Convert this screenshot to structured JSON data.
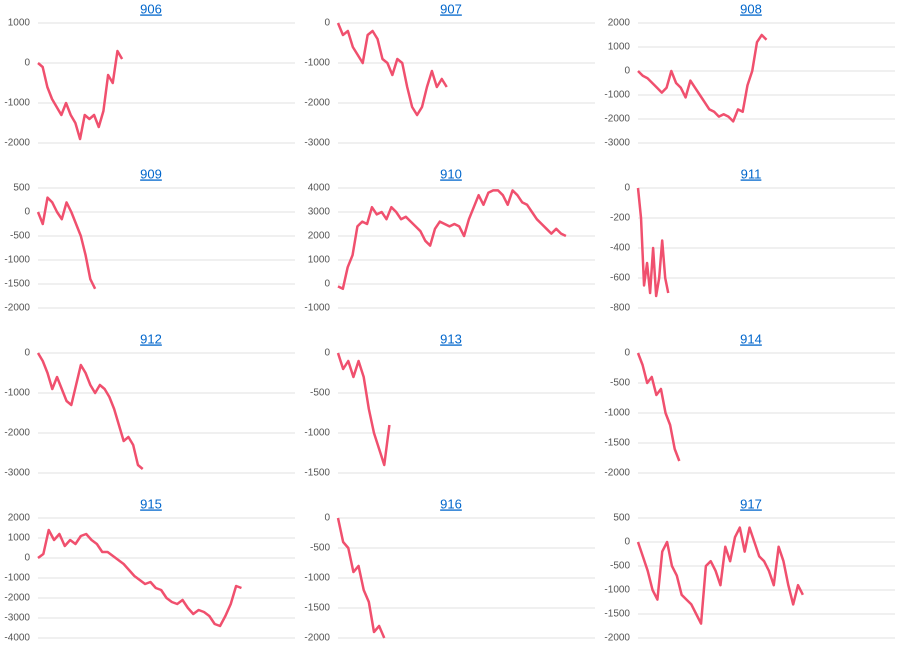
{
  "chart_data": [
    {
      "type": "line",
      "title": "906",
      "color": "#f0506e",
      "grid": true,
      "xlim": [
        0,
        55
      ],
      "ylim": [
        -2000,
        1000
      ],
      "yticks": [
        -2000,
        -1000,
        0,
        1000
      ],
      "values": [
        0,
        -100,
        -600,
        -900,
        -1100,
        -1300,
        -1000,
        -1300,
        -1500,
        -1900,
        -1300,
        -1400,
        -1300,
        -1600,
        -1200,
        -300,
        -500,
        300,
        100
      ]
    },
    {
      "type": "line",
      "title": "907",
      "color": "#f0506e",
      "grid": true,
      "xlim": [
        0,
        52
      ],
      "ylim": [
        -3000,
        0
      ],
      "yticks": [
        -3000,
        -2000,
        -1000,
        0
      ],
      "values": [
        0,
        -300,
        -200,
        -600,
        -800,
        -1000,
        -300,
        -200,
        -400,
        -900,
        -1000,
        -1300,
        -900,
        -1000,
        -1600,
        -2100,
        -2300,
        -2100,
        -1600,
        -1200,
        -1600,
        -1400,
        -1600
      ]
    },
    {
      "type": "line",
      "title": "908",
      "color": "#f0506e",
      "grid": true,
      "xlim": [
        0,
        54
      ],
      "ylim": [
        -3000,
        2000
      ],
      "yticks": [
        -3000,
        -2000,
        -1000,
        0,
        1000,
        2000
      ],
      "values": [
        0,
        -200,
        -300,
        -500,
        -700,
        -900,
        -700,
        0,
        -500,
        -700,
        -1100,
        -400,
        -700,
        -1000,
        -1300,
        -1600,
        -1700,
        -1900,
        -1800,
        -1900,
        -2100,
        -1600,
        -1700,
        -600,
        0,
        1200,
        1500,
        1300
      ]
    },
    {
      "type": "line",
      "title": "909",
      "color": "#f0506e",
      "grid": true,
      "xlim": [
        0,
        54
      ],
      "ylim": [
        -2000,
        500
      ],
      "yticks": [
        -2000,
        -1500,
        -1000,
        -500,
        0,
        500
      ],
      "values": [
        0,
        -250,
        300,
        200,
        0,
        -150,
        200,
        0,
        -250,
        -500,
        -900,
        -1400,
        -1600
      ]
    },
    {
      "type": "line",
      "title": "910",
      "color": "#f0506e",
      "grid": true,
      "xlim": [
        0,
        53
      ],
      "ylim": [
        -1000,
        4000
      ],
      "yticks": [
        -1000,
        0,
        1000,
        2000,
        3000,
        4000
      ],
      "values": [
        -100,
        -200,
        700,
        1200,
        2400,
        2600,
        2500,
        3200,
        2900,
        3000,
        2700,
        3200,
        3000,
        2700,
        2800,
        2600,
        2400,
        2200,
        1800,
        1600,
        2300,
        2600,
        2500,
        2400,
        2500,
        2400,
        2000,
        2700,
        3200,
        3700,
        3300,
        3800,
        3900,
        3900,
        3700,
        3300,
        3900,
        3700,
        3400,
        3300,
        3000,
        2700,
        2500,
        2300,
        2100,
        2300,
        2100,
        2000
      ]
    },
    {
      "type": "line",
      "title": "911",
      "color": "#f0506e",
      "grid": true,
      "xlim": [
        0,
        85
      ],
      "ylim": [
        -800,
        0
      ],
      "yticks": [
        -800,
        -600,
        -400,
        -200,
        0
      ],
      "values": [
        0,
        -200,
        -650,
        -500,
        -700,
        -400,
        -720,
        -600,
        -350,
        -600,
        -700
      ]
    },
    {
      "type": "line",
      "title": "912",
      "color": "#f0506e",
      "grid": true,
      "xlim": [
        0,
        54
      ],
      "ylim": [
        -3000,
        0
      ],
      "yticks": [
        -3000,
        -2000,
        -1000,
        0
      ],
      "values": [
        0,
        -200,
        -500,
        -900,
        -600,
        -900,
        -1200,
        -1300,
        -800,
        -300,
        -500,
        -800,
        -1000,
        -800,
        -900,
        -1100,
        -1400,
        -1800,
        -2200,
        -2100,
        -2300,
        -2800,
        -2900
      ]
    },
    {
      "type": "line",
      "title": "913",
      "color": "#f0506e",
      "grid": true,
      "xlim": [
        0,
        50
      ],
      "ylim": [
        -1500,
        0
      ],
      "yticks": [
        -1500,
        -1000,
        -500,
        0
      ],
      "values": [
        0,
        -200,
        -100,
        -300,
        -100,
        -300,
        -700,
        -1000,
        -1200,
        -1400,
        -900
      ]
    },
    {
      "type": "line",
      "title": "914",
      "color": "#f0506e",
      "grid": true,
      "xlim": [
        0,
        56
      ],
      "ylim": [
        -2000,
        0
      ],
      "yticks": [
        -2000,
        -1500,
        -1000,
        -500,
        0
      ],
      "values": [
        0,
        -200,
        -500,
        -400,
        -700,
        -600,
        -1000,
        -1200,
        -1600,
        -1800
      ]
    },
    {
      "type": "line",
      "title": "915",
      "color": "#f0506e",
      "grid": true,
      "xlim": [
        0,
        48
      ],
      "ylim": [
        -4000,
        2000
      ],
      "yticks": [
        -4000,
        -3000,
        -2000,
        -1000,
        0,
        1000,
        2000
      ],
      "values": [
        0,
        200,
        1400,
        900,
        1200,
        600,
        900,
        700,
        1100,
        1200,
        900,
        700,
        300,
        300,
        100,
        -100,
        -300,
        -600,
        -900,
        -1100,
        -1300,
        -1200,
        -1500,
        -1600,
        -2000,
        -2200,
        -2300,
        -2100,
        -2500,
        -2800,
        -2600,
        -2700,
        -2900,
        -3300,
        -3400,
        -2900,
        -2300,
        -1400,
        -1500
      ]
    },
    {
      "type": "line",
      "title": "916",
      "color": "#f0506e",
      "grid": true,
      "xlim": [
        0,
        50
      ],
      "ylim": [
        -2000,
        0
      ],
      "yticks": [
        -2000,
        -1500,
        -1000,
        -500,
        0
      ],
      "values": [
        0,
        -400,
        -500,
        -900,
        -800,
        -1200,
        -1400,
        -1900,
        -1800,
        -2000
      ]
    },
    {
      "type": "line",
      "title": "917",
      "color": "#f0506e",
      "grid": true,
      "xlim": [
        0,
        53
      ],
      "ylim": [
        -2000,
        500
      ],
      "yticks": [
        -2000,
        -1500,
        -1000,
        -500,
        0,
        500
      ],
      "values": [
        0,
        -300,
        -600,
        -1000,
        -1200,
        -200,
        0,
        -500,
        -700,
        -1100,
        -1200,
        -1300,
        -1500,
        -1700,
        -500,
        -400,
        -600,
        -900,
        -100,
        -400,
        100,
        300,
        -200,
        300,
        0,
        -300,
        -400,
        -600,
        -900,
        -100,
        -400,
        -900,
        -1300,
        -900,
        -1100
      ]
    }
  ]
}
